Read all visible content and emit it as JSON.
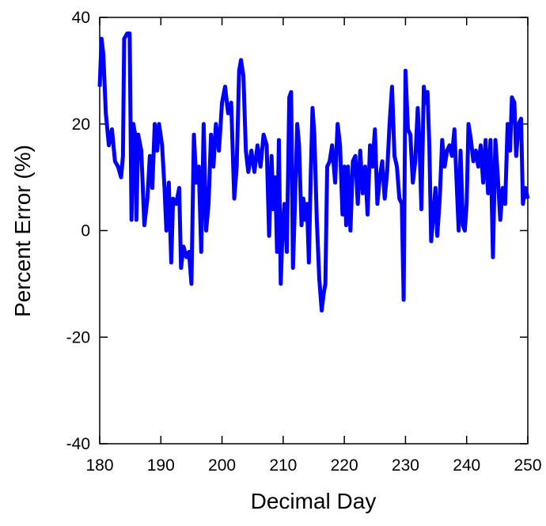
{
  "chart_data": {
    "type": "line",
    "xlabel": "Decimal Day",
    "ylabel": "Percent Error (%)",
    "xlim": [
      180,
      250
    ],
    "ylim": [
      -40,
      40
    ],
    "xticks": [
      180,
      190,
      200,
      210,
      220,
      230,
      240,
      250
    ],
    "yticks": [
      -40,
      -20,
      0,
      20,
      40
    ],
    "series": [
      {
        "color": "#0000ff",
        "x": [
          180,
          180.3,
          180.6,
          181,
          181.5,
          182,
          182.5,
          183,
          183.5,
          183.8,
          184,
          184.5,
          184.9,
          185.2,
          185.5,
          185.8,
          186,
          186.3,
          186.8,
          187.3,
          187.8,
          188.2,
          188.6,
          189,
          189.4,
          189.7,
          190.2,
          190.6,
          190.9,
          191.3,
          191.7,
          192,
          192.5,
          193,
          193.3,
          193.7,
          194.2,
          194.6,
          195,
          195.4,
          195.8,
          196.2,
          196.6,
          197,
          197.4,
          197.8,
          198.2,
          198.6,
          199,
          199.5,
          200,
          200.5,
          201,
          201.5,
          202,
          202.4,
          202.8,
          203.1,
          203.5,
          203.9,
          204.3,
          204.8,
          205.3,
          205.8,
          206.3,
          206.8,
          207.3,
          207.7,
          208.1,
          208.4,
          208.7,
          209,
          209.3,
          209.6,
          209.9,
          210.2,
          210.6,
          211,
          211.3,
          211.6,
          211.9,
          212.3,
          212.6,
          213,
          213.3,
          213.6,
          213.9,
          214.2,
          214.5,
          214.8,
          215.1,
          215.5,
          215.9,
          216.3,
          216.6,
          216.9,
          217.2,
          217.6,
          218,
          218.5,
          218.9,
          219.3,
          219.7,
          220,
          220.3,
          220.6,
          221,
          221.4,
          221.8,
          222.2,
          222.6,
          223,
          223.4,
          223.8,
          224.2,
          224.6,
          225,
          225.4,
          225.8,
          226.2,
          226.6,
          227,
          227.4,
          227.8,
          228.2,
          228.6,
          229,
          229.4,
          229.7,
          230,
          230.4,
          230.8,
          231.2,
          231.6,
          232,
          232.3,
          232.6,
          233,
          233.3,
          233.6,
          233.9,
          234.2,
          234.5,
          234.9,
          235.2,
          235.6,
          236,
          236.4,
          236.8,
          237.2,
          237.6,
          238,
          238.4,
          238.7,
          239,
          239.4,
          239.7,
          240,
          240.3,
          240.7,
          241.1,
          241.5,
          241.9,
          242.3,
          242.7,
          243.1,
          243.5,
          243.9,
          244.3,
          244.7,
          245.1,
          245.5,
          245.9,
          246.3,
          246.7,
          247.1,
          247.4,
          247.8,
          248.1,
          248.5,
          248.9,
          249.2,
          249.6,
          250
        ],
        "values": [
          27,
          36,
          33,
          22,
          16,
          19,
          13,
          12,
          10,
          14,
          36,
          37,
          37,
          2,
          20,
          18,
          2,
          18,
          15,
          1,
          6,
          14,
          8,
          20,
          15,
          20,
          16,
          8,
          0,
          9,
          -6,
          6,
          5,
          8,
          -7,
          -3,
          -5,
          -4,
          -10,
          18,
          9,
          12,
          -4,
          20,
          0,
          5,
          18,
          12,
          20,
          15,
          24,
          27,
          22,
          24,
          6,
          12,
          30,
          32,
          29,
          15,
          11,
          15,
          11,
          16,
          12,
          18,
          16,
          -1,
          14,
          4,
          10,
          -4,
          17,
          -10,
          0,
          5,
          -4,
          25,
          26,
          -7,
          4,
          20,
          16,
          1,
          6,
          2,
          5,
          -6,
          10,
          23,
          18,
          2,
          -9,
          -15,
          -12,
          -10,
          12,
          13,
          16,
          9,
          20,
          16,
          3,
          12,
          1,
          12,
          0,
          13,
          14,
          5,
          15,
          7,
          12,
          3,
          16,
          12,
          19,
          5,
          10,
          13,
          6,
          11,
          20,
          27,
          14,
          12,
          6,
          5,
          -13,
          30,
          19,
          18,
          9,
          13,
          23,
          16,
          4,
          27,
          24,
          26,
          16,
          -2,
          2,
          8,
          -1,
          6,
          17,
          12,
          15,
          16,
          14,
          19,
          8,
          0,
          15,
          1,
          0,
          5,
          20,
          17,
          13,
          15,
          12,
          16,
          9,
          17,
          7,
          17,
          -5,
          17,
          10,
          2,
          8,
          5,
          20,
          15,
          25,
          24,
          14,
          20,
          21,
          5,
          8,
          6
        ]
      }
    ]
  }
}
